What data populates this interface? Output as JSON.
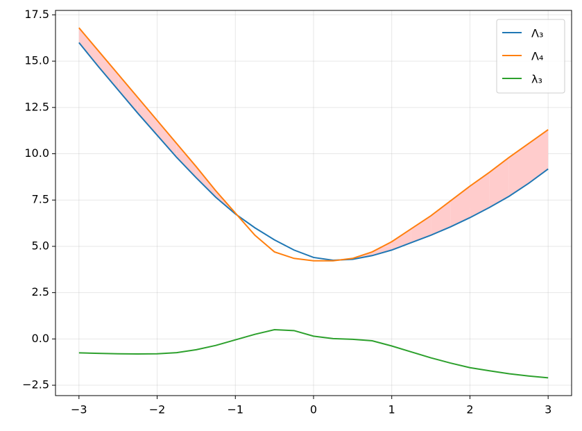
{
  "chart_data": {
    "type": "line",
    "x": [
      -3,
      -2.75,
      -2.5,
      -2.25,
      -2,
      -1.75,
      -1.5,
      -1.25,
      -1,
      -0.75,
      -0.5,
      -0.25,
      0,
      0.25,
      0.5,
      0.75,
      1,
      1.25,
      1.5,
      1.75,
      2,
      2.25,
      2.5,
      2.75,
      3
    ],
    "series": [
      {
        "name": "Λ₃",
        "color": "#1f77b4",
        "values": [
          16.0,
          14.7,
          13.45,
          12.2,
          11.0,
          9.8,
          8.7,
          7.65,
          6.75,
          6.0,
          5.35,
          4.8,
          4.4,
          4.25,
          4.3,
          4.5,
          4.8,
          5.2,
          5.6,
          6.05,
          6.55,
          7.1,
          7.7,
          8.4,
          9.18
        ]
      },
      {
        "name": "Λ₄",
        "color": "#ff7f0e",
        "values": [
          16.8,
          15.55,
          14.3,
          13.05,
          11.8,
          10.55,
          9.3,
          8.0,
          6.8,
          5.6,
          4.7,
          4.35,
          4.22,
          4.22,
          4.35,
          4.7,
          5.25,
          5.95,
          6.65,
          7.45,
          8.25,
          9.0,
          9.8,
          10.55,
          11.3
        ]
      },
      {
        "name": "λ₃",
        "color": "#2ca02c",
        "values": [
          -0.75,
          -0.78,
          -0.8,
          -0.81,
          -0.8,
          -0.74,
          -0.58,
          -0.35,
          -0.05,
          0.25,
          0.5,
          0.45,
          0.15,
          0.02,
          -0.02,
          -0.1,
          -0.38,
          -0.7,
          -1.02,
          -1.3,
          -1.55,
          -1.72,
          -1.88,
          -2.0,
          -2.1
        ]
      }
    ],
    "fill_color": "#ffcccc",
    "xlim": [
      -3.3,
      3.3
    ],
    "xticks": [
      {
        "value": -3,
        "label": "−3"
      },
      {
        "value": -2,
        "label": "−2"
      },
      {
        "value": -1,
        "label": "−1"
      },
      0,
      1,
      2,
      3
    ],
    "ylim": [
      -3.06,
      17.74
    ],
    "yticks": [
      {
        "value": -2.5,
        "label": "−2.5"
      },
      {
        "value": 0,
        "label": "0.0"
      },
      2.5,
      {
        "value": 5,
        "label": "5.0"
      },
      7.5,
      {
        "value": 10,
        "label": "10.0"
      },
      12.5,
      {
        "value": 15,
        "label": "15.0"
      },
      17.5
    ],
    "grid": true,
    "legend": "upper right"
  }
}
